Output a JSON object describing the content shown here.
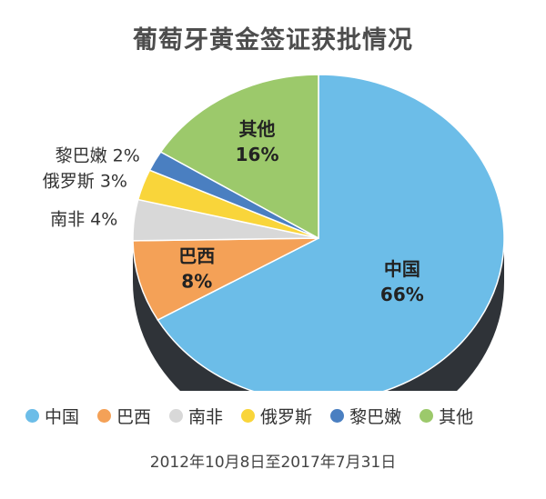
{
  "chart_data": {
    "type": "pie",
    "title": "葡萄牙黄金签证获批情况",
    "slices": [
      {
        "name": "中国",
        "value": 66,
        "label": "66%",
        "color": "#6cbde8"
      },
      {
        "name": "巴西",
        "value": 8,
        "label": "8%",
        "color": "#f4a157"
      },
      {
        "name": "南非",
        "value": 4,
        "label": "4%",
        "color": "#d8d8d8"
      },
      {
        "name": "俄罗斯",
        "value": 3,
        "label": "3%",
        "color": "#f9d53a"
      },
      {
        "name": "黎巴嫩",
        "value": 2,
        "label": "2%",
        "color": "#4a7fc1"
      },
      {
        "name": "其他",
        "value": 16,
        "label": "16%",
        "color": "#9cc96b"
      }
    ],
    "legend_position": "bottom",
    "footnote": "2012年10月8日至2017年7月31日"
  }
}
